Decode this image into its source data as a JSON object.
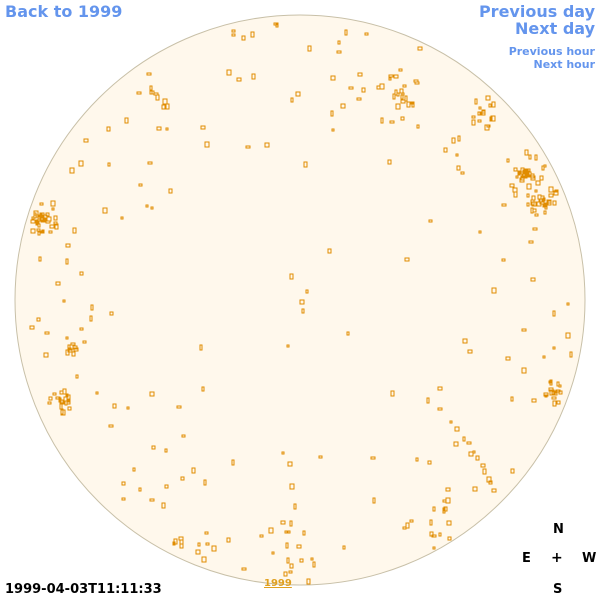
{
  "nav": {
    "back_label": "Back to 1999",
    "previous_day_label": "Previous day",
    "next_day_label": "Next day",
    "previous_hour_label": "Previous hour",
    "next_hour_label": "Next hour"
  },
  "timestamp": "1999-04-03T11:11:33",
  "year_link": "1999",
  "compass": {
    "north": "N",
    "east": "E",
    "center": "+",
    "west": "W",
    "south": "S"
  },
  "colors": {
    "link": "#6495ed",
    "disk_fill": "#fff8ec",
    "disk_border": "#c8c0a8",
    "feature": "#e08c00"
  }
}
